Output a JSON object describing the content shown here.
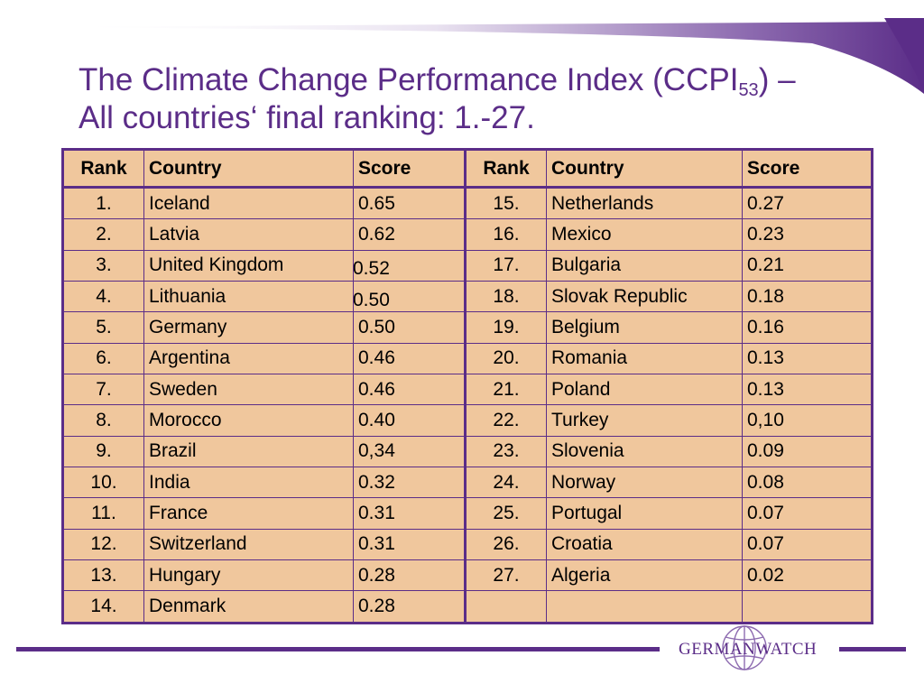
{
  "title": {
    "line1_prefix": "The Climate Change Performance Index (CCPI",
    "line1_sub": "53",
    "line1_suffix": ") –",
    "line2": "All countries‘ final ranking: 1.-27."
  },
  "table": {
    "headers": [
      "Rank",
      "Country",
      "Score",
      "Rank",
      "Country",
      "Score"
    ],
    "rows": [
      {
        "rank_a": "1.",
        "country_a": "Iceland",
        "score_a": "0.65",
        "rank_b": "15.",
        "country_b": "Netherlands",
        "score_b": "0.27"
      },
      {
        "rank_a": "2.",
        "country_a": "Latvia",
        "score_a": "0.62",
        "rank_b": "16.",
        "country_b": "Mexico",
        "score_b": "0.23"
      },
      {
        "rank_a": "3.",
        "country_a": "United Kingdom",
        "score_a": "0.52",
        "rank_b": "17.",
        "country_b": "Bulgaria",
        "score_b": "0.21"
      },
      {
        "rank_a": "4.",
        "country_a": "Lithuania",
        "score_a": "0.50",
        "rank_b": "18.",
        "country_b": "Slovak Republic",
        "score_b": "0.18"
      },
      {
        "rank_a": "5.",
        "country_a": "Germany",
        "score_a": "0.50",
        "rank_b": "19.",
        "country_b": "Belgium",
        "score_b": "0.16"
      },
      {
        "rank_a": "6.",
        "country_a": "Argentina",
        "score_a": "0.46",
        "rank_b": "20.",
        "country_b": "Romania",
        "score_b": "0.13"
      },
      {
        "rank_a": "7.",
        "country_a": "Sweden",
        "score_a": "0.46",
        "rank_b": "21.",
        "country_b": "Poland",
        "score_b": "0.13"
      },
      {
        "rank_a": "8.",
        "country_a": "Morocco",
        "score_a": "0.40",
        "rank_b": "22.",
        "country_b": "Turkey",
        "score_b": "0,10"
      },
      {
        "rank_a": "9.",
        "country_a": "Brazil",
        "score_a": "0,34",
        "rank_b": "23.",
        "country_b": "Slovenia",
        "score_b": "0.09"
      },
      {
        "rank_a": "10.",
        "country_a": "India",
        "score_a": "0.32",
        "rank_b": "24.",
        "country_b": "Norway",
        "score_b": "0.08"
      },
      {
        "rank_a": "11.",
        "country_a": "France",
        "score_a": "0.31",
        "rank_b": "25.",
        "country_b": "Portugal",
        "score_b": "0.07"
      },
      {
        "rank_a": "12.",
        "country_a": "Switzerland",
        "score_a": "0.31",
        "rank_b": "26.",
        "country_b": "Croatia",
        "score_b": "0.07"
      },
      {
        "rank_a": "13.",
        "country_a": "Hungary",
        "score_a": "0.28",
        "rank_b": "27.",
        "country_b": "Algeria",
        "score_b": "0.02"
      },
      {
        "rank_a": "14.",
        "country_a": "Denmark",
        "score_a": "0.28",
        "rank_b": "",
        "country_b": "",
        "score_b": ""
      }
    ]
  },
  "footer": {
    "logo_text": "GERMANWATCH"
  },
  "colors": {
    "accent": "#5b2d88",
    "cell_fill": "#f0c79d"
  },
  "icons": {
    "logo": "globe-icon"
  }
}
